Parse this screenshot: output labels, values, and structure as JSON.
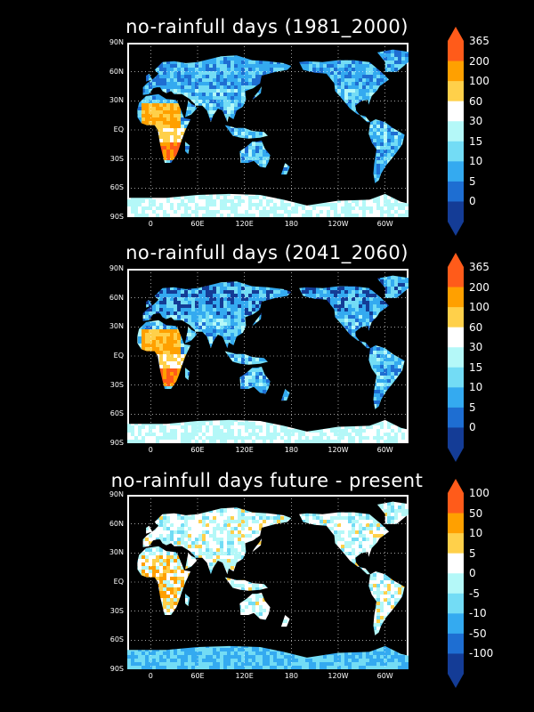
{
  "panels": [
    {
      "title": "no-rainfull days (1981_2000)",
      "colorbar": {
        "labels": [
          "365",
          "200",
          "100",
          "60",
          "30",
          "15",
          "10",
          "5",
          "0"
        ],
        "colors": [
          "#ff5b1a",
          "#ffa000",
          "#ffd04a",
          "#ffffff",
          "#b4f8f8",
          "#73dcf5",
          "#34aaf0",
          "#1e6ed2",
          "#143c96"
        ]
      }
    },
    {
      "title": "no-rainfull days (2041_2060)",
      "colorbar": {
        "labels": [
          "365",
          "200",
          "100",
          "60",
          "30",
          "15",
          "10",
          "5",
          "0"
        ],
        "colors": [
          "#ff5b1a",
          "#ffa000",
          "#ffd04a",
          "#ffffff",
          "#b4f8f8",
          "#73dcf5",
          "#34aaf0",
          "#1e6ed2",
          "#143c96"
        ]
      }
    },
    {
      "title": "no-rainfull days future - present",
      "colorbar": {
        "labels": [
          "100",
          "50",
          "10",
          "5",
          "0",
          "-5",
          "-10",
          "-50",
          "-100"
        ],
        "colors": [
          "#ff5b1a",
          "#ffa000",
          "#ffd04a",
          "#ffffff",
          "#b4f8f8",
          "#73dcf5",
          "#34aaf0",
          "#1e6ed2",
          "#143c96"
        ]
      }
    }
  ],
  "lat_labels": [
    "90N",
    "60N",
    "30N",
    "EQ",
    "30S",
    "60S",
    "90S"
  ],
  "lon_labels": [
    "0",
    "60E",
    "120E",
    "180",
    "120W",
    "60W"
  ]
}
